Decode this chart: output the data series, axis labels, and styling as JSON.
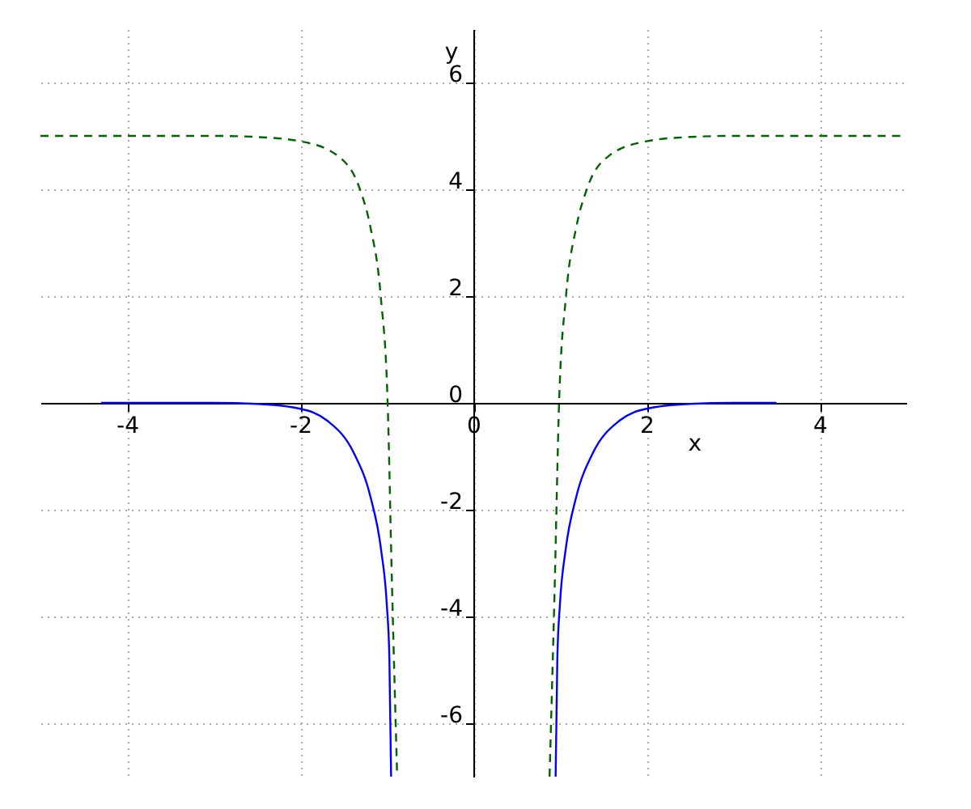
{
  "chart_data": {
    "type": "line",
    "xlabel": "x",
    "ylabel": "y",
    "xlim": [
      -5,
      5
    ],
    "ylim": [
      -7,
      7
    ],
    "xticks": [
      -4,
      -2,
      0,
      2,
      4
    ],
    "yticks": [
      -6,
      -4,
      -2,
      0,
      2,
      4,
      6
    ],
    "grid": true,
    "series": [
      {
        "color": "#006400",
        "line_style": "dashed",
        "x": [
          -5,
          -3,
          -2.5,
          -2.0,
          -1.56,
          -1.31,
          -1.19,
          -1.07,
          -0.99,
          -0.94,
          -0.88
        ],
        "values": [
          5,
          5,
          4.98,
          4.9,
          4.62,
          4.0,
          3.3,
          2.0,
          0,
          -3.4,
          -7
        ]
      },
      {
        "color": "#006400",
        "line_style": "dashed",
        "x": [
          0.88,
          0.94,
          0.99,
          1.07,
          1.19,
          1.31,
          1.56,
          2.0,
          2.5,
          3,
          5
        ],
        "values": [
          -7,
          -3.4,
          0,
          2.0,
          3.3,
          4.0,
          4.62,
          4.9,
          4.98,
          5,
          5
        ]
      },
      {
        "color": "#0000ff",
        "line_style": "solid",
        "x": [
          -4.3,
          -3.0,
          -2.5,
          -2.0,
          -1.69,
          -1.38,
          -1.19,
          -1.065,
          -1.0,
          -0.97,
          -0.95
        ],
        "values": [
          0,
          0,
          -0.02,
          -0.11,
          -0.33,
          -0.94,
          -1.75,
          -2.76,
          -3.77,
          -4.78,
          -7
        ]
      },
      {
        "color": "#0000ff",
        "line_style": "solid",
        "x": [
          0.95,
          0.97,
          1.0,
          1.065,
          1.19,
          1.38,
          1.69,
          2.0,
          2.5,
          3.0,
          3.5
        ],
        "values": [
          -7,
          -4.78,
          -3.77,
          -2.76,
          -1.75,
          -0.94,
          -0.33,
          -0.11,
          -0.02,
          0,
          0
        ]
      }
    ]
  }
}
